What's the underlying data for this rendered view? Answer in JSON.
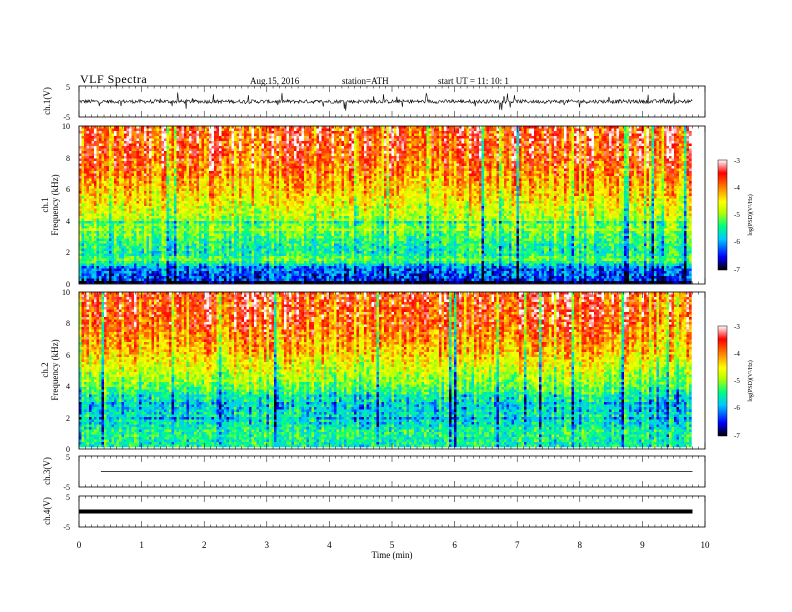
{
  "header": {
    "title": "VLF  Spectra",
    "date": "Aug.15, 2016",
    "station": "station=ATH",
    "start": "start  UT  =    11: 10: 1"
  },
  "chart_data": [
    {
      "type": "line",
      "panel": "ch1-waveform",
      "ylabel": "ch.1(V)",
      "ylim": [
        -5,
        5
      ],
      "yticks": [
        "5",
        "-5"
      ],
      "xlim": [
        0,
        10
      ],
      "description_of_signal": "noisy waveform centred near 0 V with spikes up to about ±3 V",
      "x": [
        0,
        1,
        2,
        3,
        4,
        5,
        6,
        7,
        8,
        9,
        9.8
      ],
      "y_envelope": [
        1.5,
        1.5,
        1.5,
        1.5,
        1.5,
        1.5,
        1.5,
        1.5,
        1.5,
        1.5,
        1.5
      ]
    },
    {
      "type": "heatmap",
      "panel": "ch1-spectrogram",
      "ylabel": "ch.1\nFrequency  (kHz)",
      "ylabel_line1": "ch.1",
      "ylabel_line2": "Frequency  (kHz)",
      "ylim": [
        0,
        10
      ],
      "yticks": [
        "0",
        "2",
        "4",
        "6",
        "8",
        "10"
      ],
      "xlim": [
        0,
        10
      ],
      "colorbar": {
        "label": "log(PSD)(V²/Hz)",
        "range": [
          -7,
          -3
        ],
        "ticks": [
          "-3",
          "-4",
          "-5",
          "-6",
          "-7"
        ],
        "colors": [
          "#000000",
          "#0000ff",
          "#00c8ff",
          "#00ff80",
          "#b4ff00",
          "#ffff00",
          "#ff8000",
          "#ff0000",
          "#ffffff"
        ]
      },
      "frequency_profile_log_psd": {
        "freq_khz": [
          0,
          0.5,
          1,
          1.5,
          2,
          2.5,
          3,
          3.5,
          4,
          5,
          6,
          7,
          8,
          9,
          10
        ],
        "log_psd": [
          -6.5,
          -6.3,
          -6.2,
          -5.2,
          -5.6,
          -5.5,
          -5.3,
          -5.2,
          -5.0,
          -4.6,
          -4.3,
          -4.0,
          -3.7,
          -3.6,
          -3.6
        ]
      }
    },
    {
      "type": "heatmap",
      "panel": "ch2-spectrogram",
      "ylabel_line1": "ch.2",
      "ylabel_line2": "Frequency  (kHz)",
      "ylim": [
        0,
        10
      ],
      "yticks": [
        "0",
        "2",
        "4",
        "6",
        "8",
        "10"
      ],
      "xlim": [
        0,
        10
      ],
      "colorbar": {
        "label": "log(PSD)(V²/Hz)",
        "range": [
          -7,
          -3
        ],
        "ticks": [
          "-3",
          "-4",
          "-5",
          "-6",
          "-7"
        ],
        "colors": [
          "#000000",
          "#0000ff",
          "#00c8ff",
          "#00ff80",
          "#b4ff00",
          "#ffff00",
          "#ff8000",
          "#ff0000",
          "#ffffff"
        ]
      },
      "frequency_profile_log_psd": {
        "freq_khz": [
          0,
          0.5,
          1,
          1.5,
          2,
          2.5,
          3,
          3.5,
          4,
          5,
          6,
          7,
          8,
          9,
          10
        ],
        "log_psd": [
          -5.6,
          -5.6,
          -5.5,
          -5.8,
          -5.7,
          -5.9,
          -5.7,
          -5.5,
          -5.2,
          -4.8,
          -4.4,
          -4.1,
          -3.8,
          -3.7,
          -3.6
        ]
      }
    },
    {
      "type": "line",
      "panel": "ch3-waveform",
      "ylabel": "ch.3(V)",
      "ylim": [
        -5,
        5
      ],
      "yticks": [
        "5",
        "-5"
      ],
      "xlim": [
        0,
        10
      ],
      "x": [
        0.35,
        9.8
      ],
      "y": [
        0,
        0
      ]
    },
    {
      "type": "line",
      "panel": "ch4-waveform",
      "ylabel": "ch.4(V)",
      "ylim": [
        -5,
        5
      ],
      "yticks": [
        "5",
        "-5"
      ],
      "xlim": [
        0,
        10
      ],
      "x": [
        0,
        9.8
      ],
      "y": [
        0,
        0
      ]
    },
    {
      "type": "axis",
      "panel": "time-axis",
      "xlabel": "Time  (min)",
      "xlim": [
        0,
        10
      ],
      "xticks": [
        "0",
        "1",
        "2",
        "3",
        "4",
        "5",
        "6",
        "7",
        "8",
        "9",
        "10"
      ],
      "data_end_min": 9.8
    }
  ]
}
